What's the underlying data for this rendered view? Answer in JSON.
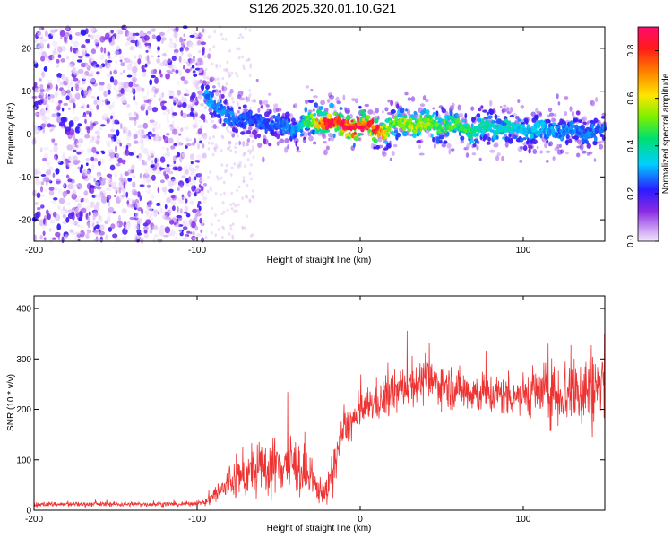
{
  "title": "S126.2025.320.01.10.G21",
  "chart_data": [
    {
      "type": "heatmap",
      "name": "spectrogram",
      "xlabel": "Height of straight line (km)",
      "ylabel": "Frequency (Hz)",
      "xlim": [
        -200,
        150
      ],
      "ylim": [
        -25,
        25
      ],
      "xticks": [
        -200,
        -100,
        0,
        100
      ],
      "yticks": [
        -20,
        -10,
        0,
        10,
        20
      ],
      "noise_region_x": [
        -200,
        -95
      ],
      "ridge": {
        "x": [
          -95,
          -90,
          -85,
          -80,
          -75,
          -70,
          -60,
          -50,
          -40,
          -30,
          -20,
          -10,
          0,
          10,
          20,
          30,
          40,
          50,
          60,
          70,
          80,
          90,
          100,
          110,
          120,
          130,
          140,
          150
        ],
        "y": [
          10,
          7,
          5,
          4,
          3.5,
          3,
          2.5,
          2,
          1.5,
          3,
          3,
          2,
          2,
          1,
          1.5,
          3,
          2,
          2.5,
          1.5,
          1,
          1.5,
          1.2,
          1,
          1,
          0.8,
          0.5,
          0.8,
          0.5
        ],
        "amp": [
          0.3,
          0.32,
          0.3,
          0.28,
          0.28,
          0.26,
          0.26,
          0.28,
          0.3,
          0.55,
          0.92,
          0.9,
          0.88,
          0.85,
          0.5,
          0.6,
          0.55,
          0.5,
          0.5,
          0.45,
          0.4,
          0.4,
          0.35,
          0.35,
          0.3,
          0.3,
          0.28,
          0.28
        ]
      },
      "colorbar": {
        "label": "Normalized spectral amplitude",
        "range": [
          0.0,
          0.9
        ],
        "ticks": [
          "0.0",
          "0.2",
          "0.4",
          "0.6",
          "0.8"
        ]
      }
    },
    {
      "type": "line",
      "name": "snr",
      "xlabel": "Height of straight line (km)",
      "ylabel": "SNR (10 * v/v)",
      "xlim": [
        -200,
        150
      ],
      "ylim": [
        0,
        425
      ],
      "xticks": [
        -200,
        -100,
        0,
        100
      ],
      "yticks": [
        0,
        100,
        200,
        300,
        400
      ],
      "color": "#ee3333",
      "series": [
        {
          "name": "SNR",
          "x": [
            -200,
            -150,
            -110,
            -95,
            -90,
            -85,
            -80,
            -75,
            -70,
            -65,
            -60,
            -55,
            -50,
            -45,
            -40,
            -35,
            -30,
            -25,
            -20,
            -15,
            -12,
            -10,
            -5,
            0,
            5,
            10,
            15,
            20,
            25,
            30,
            40,
            50,
            60,
            70,
            80,
            90,
            100,
            110,
            120,
            130,
            140,
            150
          ],
          "values": [
            12,
            12,
            12,
            15,
            30,
            40,
            55,
            65,
            70,
            75,
            80,
            85,
            90,
            95,
            90,
            75,
            55,
            40,
            38,
            100,
            140,
            160,
            175,
            190,
            210,
            215,
            220,
            230,
            240,
            250,
            255,
            250,
            240,
            235,
            230,
            228,
            230,
            235,
            232,
            235,
            240,
            245
          ]
        }
      ]
    }
  ]
}
